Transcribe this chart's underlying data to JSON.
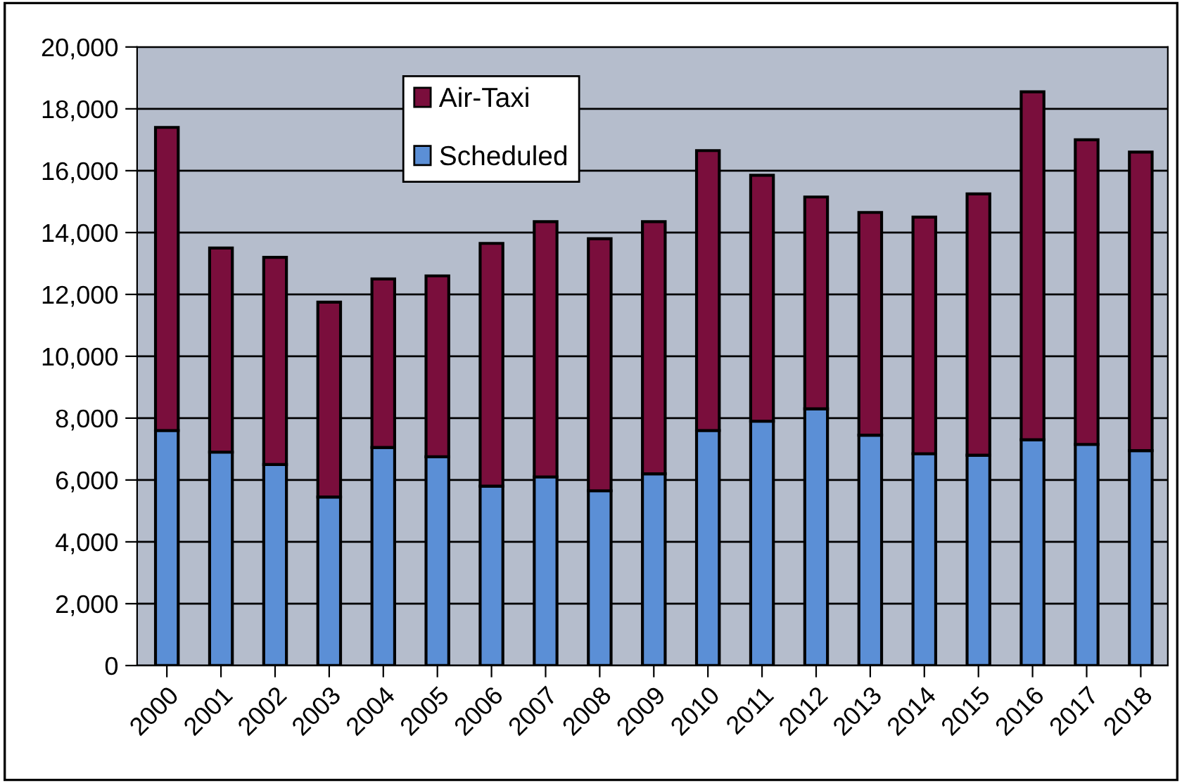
{
  "chart_data": {
    "type": "bar",
    "stacked": true,
    "categories": [
      "2000",
      "2001",
      "2002",
      "2003",
      "2004",
      "2005",
      "2006",
      "2007",
      "2008",
      "2009",
      "2010",
      "2011",
      "2012",
      "2013",
      "2014",
      "2015",
      "2016",
      "2017",
      "2018"
    ],
    "series": [
      {
        "name": "Scheduled",
        "color": "#5b8fd6",
        "values": [
          7600,
          6900,
          6500,
          5450,
          7050,
          6750,
          5800,
          6100,
          5650,
          6200,
          7600,
          7900,
          8300,
          7450,
          6850,
          6800,
          7300,
          7150,
          6950
        ]
      },
      {
        "name": "Air-Taxi",
        "color": "#7a0e3c",
        "values": [
          9800,
          6600,
          6700,
          6300,
          5450,
          5850,
          7850,
          8250,
          8150,
          8150,
          9050,
          7950,
          6850,
          7200,
          7650,
          8450,
          11250,
          9850,
          9650
        ]
      }
    ],
    "ylim": [
      0,
      20000
    ],
    "yticks": [
      0,
      {
        "value": 2000,
        "label": "2,000"
      },
      {
        "value": 4000,
        "label": "4,000"
      },
      {
        "value": 6000,
        "label": "6,000"
      },
      {
        "value": 8000,
        "label": "8,000"
      },
      {
        "value": 10000,
        "label": "10,000"
      },
      {
        "value": 12000,
        "label": "12,000"
      },
      {
        "value": 14000,
        "label": "14,000"
      },
      {
        "value": 16000,
        "label": "16,000"
      },
      {
        "value": 18000,
        "label": "18,000"
      },
      {
        "value": 20000,
        "label": "20,000"
      }
    ],
    "grid": "y",
    "legend": "top left"
  }
}
